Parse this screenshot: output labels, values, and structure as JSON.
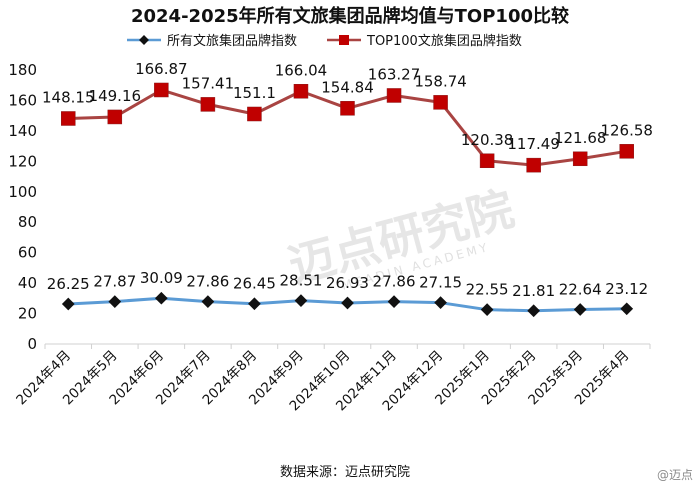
{
  "chart_data": {
    "type": "line",
    "title": "2024-2025年所有文旅集团品牌均值与TOP100比较",
    "categories": [
      "2024年4月",
      "2024年5月",
      "2024年6月",
      "2024年7月",
      "2024年8月",
      "2024年9月",
      "2024年10月",
      "2024年11月",
      "2024年12月",
      "2025年1月",
      "2025年2月",
      "2025年3月",
      "2025年4月"
    ],
    "series": [
      {
        "name": "所有文旅集团品牌指数",
        "color": "#5b9bd5",
        "marker": "diamond",
        "marker_color": "#111111",
        "values": [
          26.25,
          27.87,
          30.09,
          27.86,
          26.45,
          28.51,
          26.93,
          27.86,
          27.15,
          22.55,
          21.81,
          22.64,
          23.12
        ],
        "labels": [
          "26.25",
          "27.87",
          "30.09",
          "27.86",
          "26.45",
          "28.51",
          "26.93",
          "27.86",
          "27.15",
          "22.55",
          "21.81",
          "22.64",
          "23.12"
        ]
      },
      {
        "name": "TOP100文旅集团品牌指数",
        "color": "#a94442",
        "marker": "square",
        "marker_color": "#c00000",
        "values": [
          148.15,
          149.16,
          166.87,
          157.41,
          151.1,
          166.04,
          154.84,
          163.27,
          158.74,
          120.38,
          117.49,
          121.68,
          126.58
        ],
        "labels": [
          "148.15",
          "149.16",
          "166.87",
          "157.41",
          "151.1",
          "166.04",
          "154.84",
          "163.27",
          "158.74",
          "120.38",
          "117.49",
          "121.68",
          "126.58"
        ]
      }
    ],
    "ylim": [
      0,
      180
    ],
    "yticks": [
      "0",
      "20",
      "40",
      "60",
      "80",
      "100",
      "120",
      "140",
      "160",
      "180"
    ],
    "grid": false,
    "legend_position": "top",
    "xlabel": "",
    "ylabel": ""
  },
  "source_text": "数据来源：迈点研究院",
  "watermark": {
    "text": "迈点研究院",
    "subtext": "MEADIN ACADEMY"
  },
  "corner_mark": "@迈点"
}
